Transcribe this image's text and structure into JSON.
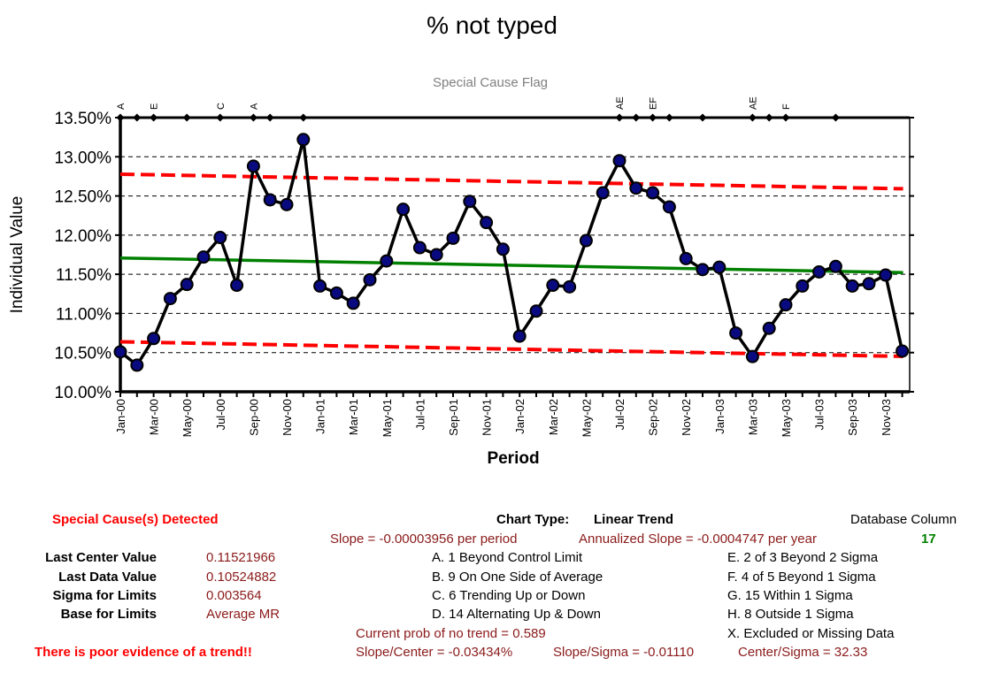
{
  "colors": {
    "data_line": "#000000",
    "marker_fill": "#0a0a80",
    "center_line": "#008000",
    "limit_lines": "#ff0000",
    "flag_title": "#808080",
    "warning_text": "#ff0000",
    "info_text": "#8b1a1a",
    "db_value": "#008000"
  },
  "chart_data": {
    "type": "line",
    "title": "% not typed",
    "subtitle": "Special Cause Flag",
    "xlabel": "Period",
    "ylabel": "Individual Value",
    "ylim": [
      0.1,
      0.135
    ],
    "y_ticks": [
      "10.00%",
      "10.50%",
      "11.00%",
      "11.50%",
      "12.00%",
      "12.50%",
      "13.00%",
      "13.50%"
    ],
    "x_tick_labels": [
      "Jan-00",
      "Mar-00",
      "May-00",
      "Jul-00",
      "Sep-00",
      "Nov-00",
      "Jan-01",
      "Mar-01",
      "May-01",
      "Jul-01",
      "Sep-01",
      "Nov-01",
      "Jan-02",
      "Mar-02",
      "May-02",
      "Jul-02",
      "Sep-02",
      "Nov-02",
      "Jan-03",
      "Mar-03",
      "May-03",
      "Jul-03",
      "Sep-03",
      "Nov-03"
    ],
    "grid": "horizontal dashed",
    "series": [
      {
        "role": "individual-values",
        "values": [
          0.1051,
          0.1034,
          0.1068,
          0.1119,
          0.1137,
          0.1172,
          0.1197,
          0.1136,
          0.1288,
          0.1245,
          0.1239,
          0.1322,
          0.1135,
          0.1126,
          0.1113,
          0.1143,
          0.1167,
          0.1233,
          0.1184,
          0.1175,
          0.1196,
          0.1243,
          0.1216,
          0.1182,
          0.1071,
          0.1103,
          0.1136,
          0.1134,
          0.1193,
          0.1254,
          0.1295,
          0.126,
          0.1254,
          0.1236,
          0.117,
          0.1156,
          0.1159,
          0.1075,
          0.1045,
          0.1081,
          0.1111,
          0.1135,
          0.1153,
          0.116,
          0.1135,
          0.1138,
          0.1149,
          0.1052
        ]
      },
      {
        "role": "center-line",
        "start": 0.11708,
        "end": 0.11522
      },
      {
        "role": "upper-limit",
        "start": 0.12778,
        "end": 0.12592
      },
      {
        "role": "lower-limit",
        "start": 0.10638,
        "end": 0.10452
      }
    ],
    "special_cause_flags": [
      {
        "index": 0,
        "label": "A"
      },
      {
        "index": 1,
        "label": ""
      },
      {
        "index": 2,
        "label": "E"
      },
      {
        "index": 4,
        "label": ""
      },
      {
        "index": 6,
        "label": "C"
      },
      {
        "index": 8,
        "label": "A"
      },
      {
        "index": 9,
        "label": ""
      },
      {
        "index": 11,
        "label": ""
      },
      {
        "index": 30,
        "label": "AE"
      },
      {
        "index": 31,
        "label": ""
      },
      {
        "index": 32,
        "label": "EF"
      },
      {
        "index": 33,
        "label": ""
      },
      {
        "index": 35,
        "label": ""
      },
      {
        "index": 38,
        "label": "AE"
      },
      {
        "index": 39,
        "label": ""
      },
      {
        "index": 40,
        "label": "F"
      },
      {
        "index": 43,
        "label": ""
      }
    ]
  },
  "panel": {
    "special_cause_detected": "Special Cause(s) Detected",
    "chart_type_label": "Chart Type:",
    "chart_type_value": "Linear Trend",
    "database_column_label": "Database Column",
    "database_column_value": "17",
    "slope": "Slope = -0.00003956 per period",
    "annualized_slope": "Annualized Slope = -0.0004747 per year",
    "stats": [
      {
        "label": "Last Center Value",
        "value": "0.11521966"
      },
      {
        "label": "Last Data Value",
        "value": "0.10524882"
      },
      {
        "label": "Sigma for Limits",
        "value": "0.003564"
      },
      {
        "label": "Base for Limits",
        "value": "Average MR"
      }
    ],
    "rules_left": [
      "A. 1 Beyond Control Limit",
      "B. 9 On One Side of Average",
      "C. 6 Trending Up or Down",
      "D. 14 Alternating  Up & Down"
    ],
    "rules_right": [
      "E.  2 of 3 Beyond 2 Sigma",
      "F.  4 of 5 Beyond 1 Sigma",
      "G.  15 Within 1 Sigma",
      "H.  8 Outside 1 Sigma",
      "X.  Excluded or Missing Data"
    ],
    "prob_no_trend": "Current prob of no trend = 0.589",
    "trend_evidence": "There is poor evidence of a trend!!",
    "slope_center": "Slope/Center = -0.03434%",
    "slope_sigma": "Slope/Sigma = -0.01110",
    "center_sigma": "Center/Sigma = 32.33"
  }
}
